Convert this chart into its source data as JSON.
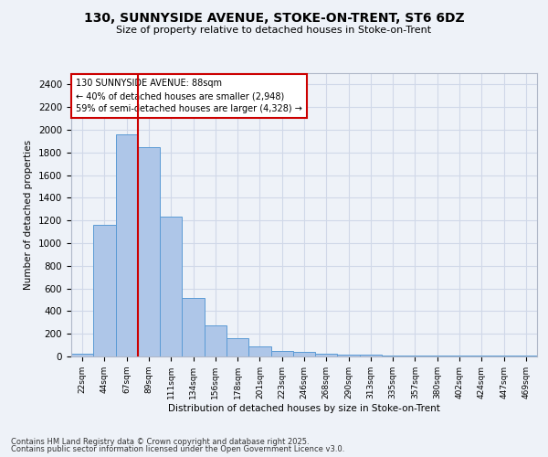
{
  "title_line1": "130, SUNNYSIDE AVENUE, STOKE-ON-TRENT, ST6 6DZ",
  "title_line2": "Size of property relative to detached houses in Stoke-on-Trent",
  "xlabel": "Distribution of detached houses by size in Stoke-on-Trent",
  "ylabel": "Number of detached properties",
  "categories": [
    "22sqm",
    "44sqm",
    "67sqm",
    "89sqm",
    "111sqm",
    "134sqm",
    "156sqm",
    "178sqm",
    "201sqm",
    "223sqm",
    "246sqm",
    "268sqm",
    "290sqm",
    "313sqm",
    "335sqm",
    "357sqm",
    "380sqm",
    "402sqm",
    "424sqm",
    "447sqm",
    "469sqm"
  ],
  "values": [
    25,
    1160,
    1960,
    1850,
    1230,
    520,
    275,
    158,
    90,
    50,
    42,
    25,
    20,
    14,
    10,
    5,
    5,
    5,
    5,
    5,
    5
  ],
  "bar_color": "#aec6e8",
  "bar_edge_color": "#5b9bd5",
  "grid_color": "#d0d8e8",
  "background_color": "#eef2f8",
  "vline_color": "#cc0000",
  "annotation_text": "130 SUNNYSIDE AVENUE: 88sqm\n← 40% of detached houses are smaller (2,948)\n59% of semi-detached houses are larger (4,328) →",
  "annotation_box_color": "#ffffff",
  "annotation_edge_color": "#cc0000",
  "ylim": [
    0,
    2500
  ],
  "yticks": [
    0,
    200,
    400,
    600,
    800,
    1000,
    1200,
    1400,
    1600,
    1800,
    2000,
    2200,
    2400
  ],
  "footer_line1": "Contains HM Land Registry data © Crown copyright and database right 2025.",
  "footer_line2": "Contains public sector information licensed under the Open Government Licence v3.0."
}
